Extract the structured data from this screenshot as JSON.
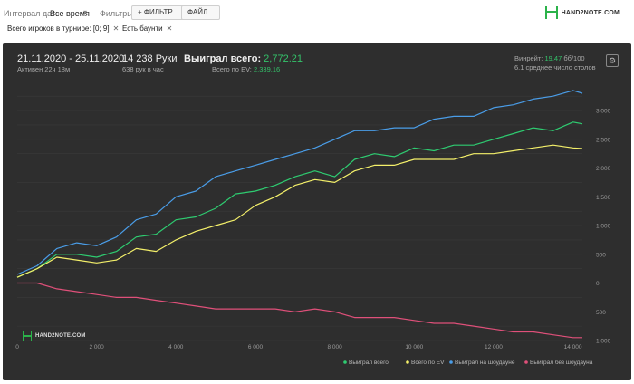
{
  "toolbar": {
    "interval_label": "Интервал дат:",
    "interval_value": "Все время",
    "filters_label": "Фильтры:",
    "filter_button": "ФИЛЬТР...",
    "file_button": "ФАЙЛ...",
    "chips": [
      "Всего игроков в турнире: [0; 9]",
      "Есть баунти"
    ],
    "brand": "HAND2NOTE.COM"
  },
  "stats": {
    "date_range": "21.11.2020 - 25.11.2020",
    "active": "Активен 22ч 18м",
    "hands": "14 238 Руки",
    "hands_per_hour": "638 рук в час",
    "won_label": "Выиграл всего:",
    "won_value": "2,772.21",
    "ev_label": "Всего по EV:",
    "ev_value": "2,339.16",
    "winrate_label": "Винрейт:",
    "winrate_value": "19.47",
    "winrate_unit": "бб/100",
    "avg_tables": "6.1 среднее число столов"
  },
  "watermark": "HAND2NOTE.COM",
  "colors": {
    "total": "#2ecc71",
    "ev": "#f4f06a",
    "showdown": "#4a9de8",
    "non_showdown": "#e0507a",
    "panel": "#2e2e2e"
  },
  "chart_data": {
    "type": "line",
    "xlim": [
      0,
      14238
    ],
    "ylim": [
      -1000,
      3600
    ],
    "x_ticks": [
      0,
      2000,
      4000,
      6000,
      8000,
      10000,
      12000,
      14000
    ],
    "x_tick_labels": [
      "0",
      "2 000",
      "4 000",
      "6 000",
      "8 000",
      "10 000",
      "12 000",
      "14 000"
    ],
    "y_ticks": [
      -1000,
      -500,
      0,
      500,
      1000,
      1500,
      2000,
      2500,
      3000
    ],
    "y_tick_labels": [
      "1 000",
      "500",
      "0",
      "500",
      "1 000",
      "1 500",
      "2 000",
      "2 500",
      "3 000"
    ],
    "grid": true,
    "legend_position": "bottom-right",
    "series": [
      {
        "name": "Выиграл всего",
        "color": "#2ecc71",
        "x": [
          0,
          500,
          1000,
          1500,
          2000,
          2500,
          3000,
          3500,
          4000,
          4500,
          5000,
          5500,
          6000,
          6500,
          7000,
          7500,
          8000,
          8500,
          9000,
          9500,
          10000,
          10500,
          11000,
          11500,
          12000,
          12500,
          13000,
          13500,
          14000,
          14238
        ],
        "y": [
          100,
          250,
          500,
          500,
          450,
          550,
          800,
          850,
          1100,
          1150,
          1300,
          1550,
          1600,
          1700,
          1850,
          1950,
          1850,
          2150,
          2250,
          2200,
          2350,
          2300,
          2400,
          2400,
          2500,
          2600,
          2700,
          2650,
          2800,
          2770
        ]
      },
      {
        "name": "Всего по EV",
        "color": "#f4f06a",
        "x": [
          0,
          500,
          1000,
          1500,
          2000,
          2500,
          3000,
          3500,
          4000,
          4500,
          5000,
          5500,
          6000,
          6500,
          7000,
          7500,
          8000,
          8500,
          9000,
          9500,
          10000,
          10500,
          11000,
          11500,
          12000,
          12500,
          13000,
          13500,
          14000,
          14238
        ],
        "y": [
          100,
          250,
          450,
          400,
          350,
          400,
          600,
          550,
          750,
          900,
          1000,
          1100,
          1350,
          1500,
          1700,
          1800,
          1750,
          1950,
          2050,
          2050,
          2150,
          2150,
          2150,
          2250,
          2250,
          2300,
          2350,
          2400,
          2350,
          2340
        ]
      },
      {
        "name": "Выиграл на шоудауне",
        "color": "#4a9de8",
        "x": [
          0,
          500,
          1000,
          1500,
          2000,
          2500,
          3000,
          3500,
          4000,
          4500,
          5000,
          5500,
          6000,
          6500,
          7000,
          7500,
          8000,
          8500,
          9000,
          9500,
          10000,
          10500,
          11000,
          11500,
          12000,
          12500,
          13000,
          13500,
          14000,
          14238
        ],
        "y": [
          150,
          300,
          600,
          700,
          650,
          800,
          1100,
          1200,
          1500,
          1600,
          1850,
          1950,
          2050,
          2150,
          2250,
          2350,
          2500,
          2650,
          2650,
          2700,
          2700,
          2850,
          2900,
          2900,
          3050,
          3100,
          3200,
          3250,
          3350,
          3300
        ]
      },
      {
        "name": "Выиграл без шоудауна",
        "color": "#e0507a",
        "x": [
          0,
          500,
          1000,
          1500,
          2000,
          2500,
          3000,
          3500,
          4000,
          4500,
          5000,
          5500,
          6000,
          6500,
          7000,
          7500,
          8000,
          8500,
          9000,
          9500,
          10000,
          10500,
          11000,
          11500,
          12000,
          12500,
          13000,
          13500,
          14000,
          14238
        ],
        "y": [
          0,
          0,
          -100,
          -150,
          -200,
          -250,
          -250,
          -300,
          -350,
          -400,
          -450,
          -450,
          -450,
          -450,
          -500,
          -450,
          -500,
          -600,
          -600,
          -600,
          -650,
          -700,
          -700,
          -750,
          -800,
          -850,
          -850,
          -900,
          -950,
          -950
        ]
      }
    ]
  }
}
